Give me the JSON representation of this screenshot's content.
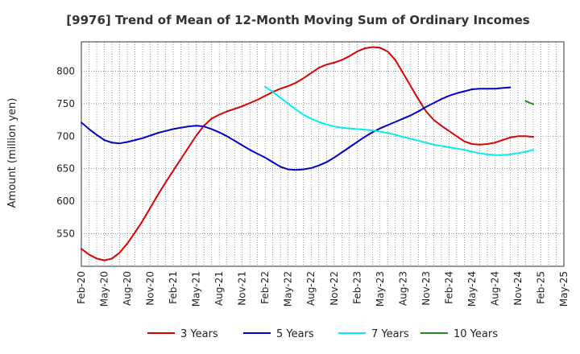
{
  "chart_data": {
    "type": "line",
    "title": "[9976]  Trend of Mean of 12-Month Moving Sum of Ordinary Incomes",
    "xlabel": "",
    "ylabel": "Amount (million yen)",
    "ylim": [
      500,
      845
    ],
    "yticks": [
      550,
      600,
      650,
      700,
      750,
      800
    ],
    "x_start": "Feb-20",
    "x_end": "May-25",
    "xticks": [
      "Feb-20",
      "May-20",
      "Aug-20",
      "Nov-20",
      "Feb-21",
      "May-21",
      "Aug-21",
      "Nov-21",
      "Feb-22",
      "May-22",
      "Aug-22",
      "Nov-22",
      "Feb-23",
      "May-23",
      "Aug-23",
      "Nov-23",
      "Feb-24",
      "May-24",
      "Aug-24",
      "Nov-24",
      "Feb-25",
      "May-25"
    ],
    "grid": true,
    "legend_position": "bottom",
    "series": [
      {
        "name": "3 Years",
        "color": "#dd0000",
        "start_month_index": 0,
        "values": [
          527,
          518,
          512,
          509,
          512,
          521,
          535,
          552,
          570,
          590,
          610,
          629,
          647,
          665,
          683,
          701,
          716,
          727,
          733,
          738,
          742,
          746,
          751,
          756,
          762,
          768,
          773,
          777,
          782,
          789,
          797,
          805,
          810,
          813,
          817,
          823,
          830,
          835,
          837,
          836,
          830,
          817,
          797,
          777,
          757,
          738,
          725,
          716,
          708,
          700,
          692,
          688,
          687,
          688,
          690,
          694,
          698,
          700,
          700,
          699
        ],
        "visible_values": 60
      },
      {
        "name": "5 Years",
        "color": "#0000cc",
        "start_month_index": 0,
        "values": [
          721,
          711,
          702,
          694,
          690,
          689,
          691,
          694,
          697,
          701,
          705,
          708,
          711,
          713,
          715,
          716,
          715,
          711,
          706,
          700,
          693,
          686,
          679,
          673,
          667,
          660,
          653,
          649,
          648,
          649,
          651,
          655,
          660,
          667,
          675,
          683,
          691,
          699,
          706,
          712,
          717,
          722,
          727,
          732,
          738,
          745,
          751,
          757,
          762,
          766,
          769,
          772,
          773,
          773,
          773,
          774,
          775
        ],
        "visible_values": 57
      },
      {
        "name": "7 Years",
        "color": "#00eeee",
        "start_month_index": 24,
        "values": [
          776,
          768,
          759,
          750,
          741,
          733,
          727,
          722,
          718,
          715,
          713,
          712,
          711,
          710,
          709,
          707,
          705,
          702,
          699,
          696,
          693,
          690,
          687,
          685,
          683,
          681,
          679,
          676,
          674,
          672,
          671,
          671,
          672,
          674,
          676,
          679
        ],
        "visible_values": 36
      },
      {
        "name": "10 Years",
        "color": "#228b22",
        "start_month_index": 58,
        "values": [
          754,
          749
        ],
        "visible_values": 2
      }
    ]
  }
}
